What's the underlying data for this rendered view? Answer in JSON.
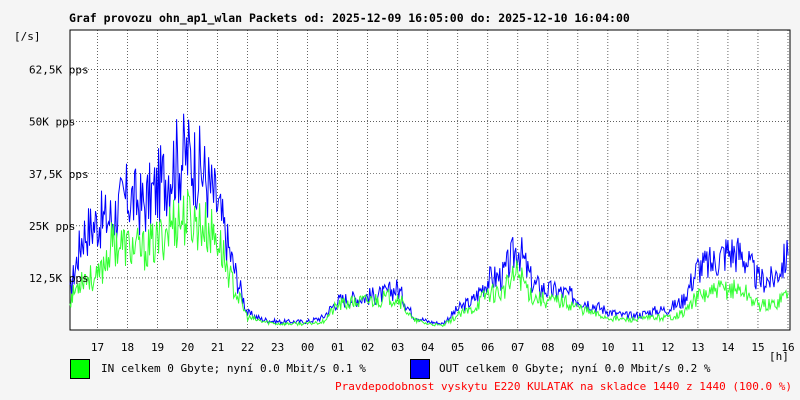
{
  "chart_data": {
    "type": "line",
    "title": "Graf provozu ohn_ap1_wlan Packets od: 2025-12-09 16:05:00 do: 2025-12-10 16:04:00",
    "ylabel": "[/s]",
    "xlabel": "[h]",
    "ylim": [
      0,
      72000
    ],
    "y_ticks": [
      {
        "value": 12500,
        "label": "12,5K pps"
      },
      {
        "value": 25000,
        "label": "25K pps"
      },
      {
        "value": 37500,
        "label": "37,5K pps"
      },
      {
        "value": 50000,
        "label": "50K pps"
      },
      {
        "value": 62500,
        "label": "62,5K pps"
      }
    ],
    "x_start_hour": 16.083,
    "x_end_hour": 40.067,
    "x_ticks": [
      {
        "hour": 17,
        "label": "17"
      },
      {
        "hour": 18,
        "label": "18"
      },
      {
        "hour": 19,
        "label": "19"
      },
      {
        "hour": 20,
        "label": "20"
      },
      {
        "hour": 21,
        "label": "21"
      },
      {
        "hour": 22,
        "label": "22"
      },
      {
        "hour": 23,
        "label": "23"
      },
      {
        "hour": 24,
        "label": "00"
      },
      {
        "hour": 25,
        "label": "01"
      },
      {
        "hour": 26,
        "label": "02"
      },
      {
        "hour": 27,
        "label": "03"
      },
      {
        "hour": 28,
        "label": "04"
      },
      {
        "hour": 29,
        "label": "05"
      },
      {
        "hour": 30,
        "label": "06"
      },
      {
        "hour": 31,
        "label": "07"
      },
      {
        "hour": 32,
        "label": "08"
      },
      {
        "hour": 33,
        "label": "09"
      },
      {
        "hour": 34,
        "label": "10"
      },
      {
        "hour": 35,
        "label": "11"
      },
      {
        "hour": 36,
        "label": "12"
      },
      {
        "hour": 37,
        "label": "13"
      },
      {
        "hour": 38,
        "label": "14"
      },
      {
        "hour": 39,
        "label": "15"
      },
      {
        "hour": 40,
        "label": "16"
      }
    ],
    "grid": true,
    "series": [
      {
        "name": "IN",
        "color": "#33ff33",
        "x": [
          16.08,
          16.5,
          17.0,
          17.5,
          18.0,
          18.5,
          19.0,
          19.5,
          20.0,
          20.5,
          21.0,
          21.5,
          22.0,
          22.5,
          23.0,
          23.5,
          24.0,
          24.5,
          25.0,
          25.5,
          26.0,
          26.5,
          27.0,
          27.5,
          28.0,
          28.5,
          29.0,
          29.5,
          30.0,
          30.5,
          31.0,
          31.5,
          32.0,
          32.5,
          33.0,
          33.5,
          34.0,
          34.5,
          35.0,
          35.5,
          36.0,
          36.5,
          37.0,
          37.5,
          38.0,
          38.5,
          39.0,
          39.5,
          40.0
        ],
        "values": [
          7000,
          13000,
          12000,
          21000,
          20000,
          19000,
          21000,
          26000,
          27000,
          25000,
          22000,
          11000,
          3000,
          2000,
          1500,
          1500,
          1500,
          2000,
          6000,
          6500,
          7000,
          7500,
          8000,
          2500,
          1500,
          1000,
          3500,
          5000,
          9000,
          9000,
          14000,
          8000,
          7000,
          7000,
          5500,
          4000,
          3000,
          2500,
          2500,
          3000,
          3000,
          4000,
          8000,
          9000,
          10000,
          9500,
          6000,
          6000,
          9000
        ]
      },
      {
        "name": "OUT",
        "color": "#0000ff",
        "x": [
          16.08,
          16.5,
          17.0,
          17.5,
          18.0,
          18.5,
          19.0,
          19.5,
          20.0,
          20.5,
          21.0,
          21.5,
          22.0,
          22.5,
          23.0,
          23.5,
          24.0,
          24.5,
          25.0,
          25.5,
          26.0,
          26.5,
          27.0,
          27.5,
          28.0,
          28.5,
          29.0,
          29.5,
          30.0,
          30.5,
          31.0,
          31.5,
          32.0,
          32.5,
          33.0,
          33.5,
          34.0,
          34.5,
          35.0,
          35.5,
          36.0,
          36.5,
          37.0,
          37.5,
          38.0,
          38.5,
          39.0,
          39.5,
          40.0
        ],
        "values": [
          9000,
          23000,
          26000,
          27000,
          32000,
          30000,
          34000,
          40000,
          42000,
          38000,
          30000,
          16000,
          4000,
          2500,
          2000,
          2000,
          2000,
          3000,
          7000,
          7500,
          8000,
          8500,
          10000,
          3500,
          2000,
          1500,
          5000,
          7000,
          12000,
          13000,
          20000,
          11000,
          9500,
          9000,
          7500,
          6000,
          4500,
          3500,
          3500,
          4500,
          5000,
          7000,
          15000,
          16000,
          19000,
          18000,
          12000,
          12000,
          18000
        ]
      }
    ]
  },
  "legend": {
    "in_text": "IN celkem 0 Gbyte; nyní    0.0 Mbit/s 0.1 %",
    "out_text": "OUT celkem 0 Gbyte; nyní    0.0 Mbit/s 0.2 %",
    "in_color": "#00ff00",
    "out_color": "#0000ff"
  },
  "footer": "Pravdepodobnost vyskytu E220 KULATAK na skladce 1440 z 1440 (100.0 %)"
}
